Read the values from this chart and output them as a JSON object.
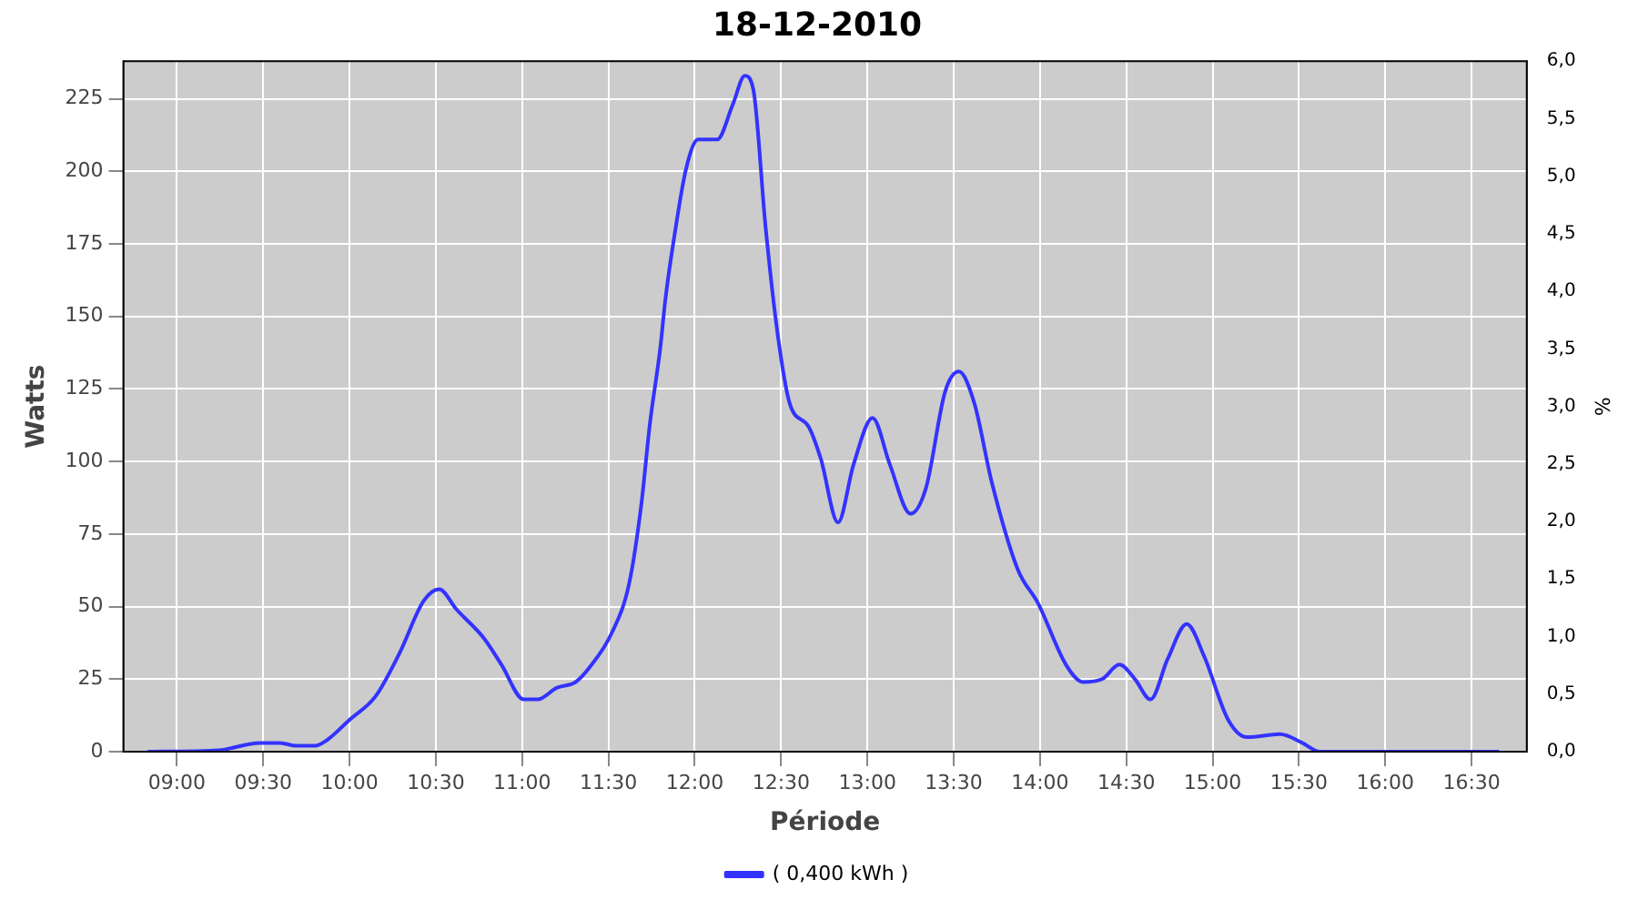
{
  "chart_data": {
    "type": "line",
    "title": "18-12-2010",
    "xlabel": "Période",
    "ylabel": "Watts",
    "y2label": "%",
    "series": [
      {
        "name": "( 0,400 kWh )",
        "color": "#3333ff",
        "x": [
          8.83,
          9.24,
          9.48,
          9.6,
          9.69,
          9.8,
          9.87,
          10.0,
          10.15,
          10.29,
          10.43,
          10.52,
          10.62,
          10.78,
          10.88,
          11.01,
          11.09,
          11.2,
          11.31,
          11.39,
          11.52,
          11.62,
          11.69,
          11.74,
          11.8,
          11.83,
          11.88,
          11.95,
          12.02,
          12.13,
          12.22,
          12.29,
          12.34,
          12.41,
          12.48,
          12.55,
          12.66,
          12.73,
          12.83,
          12.92,
          13.03,
          13.13,
          13.25,
          13.34,
          13.45,
          13.53,
          13.62,
          13.72,
          13.87,
          13.99,
          14.15,
          14.25,
          14.36,
          14.46,
          14.55,
          14.64,
          14.74,
          14.85,
          14.95,
          15.09,
          15.2,
          15.39,
          15.52,
          15.62,
          16.66
        ],
        "values": [
          0,
          0.5,
          3,
          3,
          2,
          2,
          4,
          11,
          19,
          34,
          52,
          56,
          49,
          39,
          30,
          18,
          18,
          22,
          24,
          29,
          41,
          58,
          85,
          113,
          139,
          156,
          177,
          201,
          211,
          211,
          223,
          233,
          228,
          181,
          144,
          120,
          112,
          101,
          79,
          99,
          115,
          99,
          82,
          91,
          124,
          131,
          120,
          93,
          63,
          51,
          30,
          24,
          25,
          30,
          25,
          18,
          32,
          44,
          33,
          11,
          5,
          6,
          3,
          0,
          0
        ]
      }
    ],
    "xlim": [
      8.69,
      16.82
    ],
    "xticks": [
      {
        "value": 9,
        "label": "09:00"
      },
      {
        "value": 9.5,
        "label": "09:30"
      },
      {
        "value": 10,
        "label": "10:00"
      },
      {
        "value": 10.5,
        "label": "10:30"
      },
      {
        "value": 11,
        "label": "11:00"
      },
      {
        "value": 11.5,
        "label": "11:30"
      },
      {
        "value": 12,
        "label": "12:00"
      },
      {
        "value": 12.5,
        "label": "12:30"
      },
      {
        "value": 13,
        "label": "13:00"
      },
      {
        "value": 13.5,
        "label": "13:30"
      },
      {
        "value": 14,
        "label": "14:00"
      },
      {
        "value": 14.5,
        "label": "14:30"
      },
      {
        "value": 15,
        "label": "15:00"
      },
      {
        "value": 15.5,
        "label": "15:30"
      },
      {
        "value": 16,
        "label": "16:00"
      },
      {
        "value": 16.5,
        "label": "16:30"
      }
    ],
    "ylim": [
      0,
      238
    ],
    "yticks": [
      0,
      25,
      50,
      75,
      100,
      125,
      150,
      175,
      200,
      225
    ],
    "y2lim": [
      0,
      6
    ],
    "y2ticks": [
      {
        "value": 0,
        "label": "0,0"
      },
      {
        "value": 0.5,
        "label": "0,5"
      },
      {
        "value": 1,
        "label": "1,0"
      },
      {
        "value": 1.5,
        "label": "1,5"
      },
      {
        "value": 2,
        "label": "2,0"
      },
      {
        "value": 2.5,
        "label": "2,5"
      },
      {
        "value": 3,
        "label": "3,0"
      },
      {
        "value": 3.5,
        "label": "3,5"
      },
      {
        "value": 4,
        "label": "4,0"
      },
      {
        "value": 4.5,
        "label": "4,5"
      },
      {
        "value": 5,
        "label": "5,0"
      },
      {
        "value": 5.5,
        "label": "5,5"
      },
      {
        "value": 6,
        "label": "6,0"
      }
    ],
    "grid": true,
    "legend": "bottom",
    "marker": "none",
    "line_style": "solid"
  }
}
